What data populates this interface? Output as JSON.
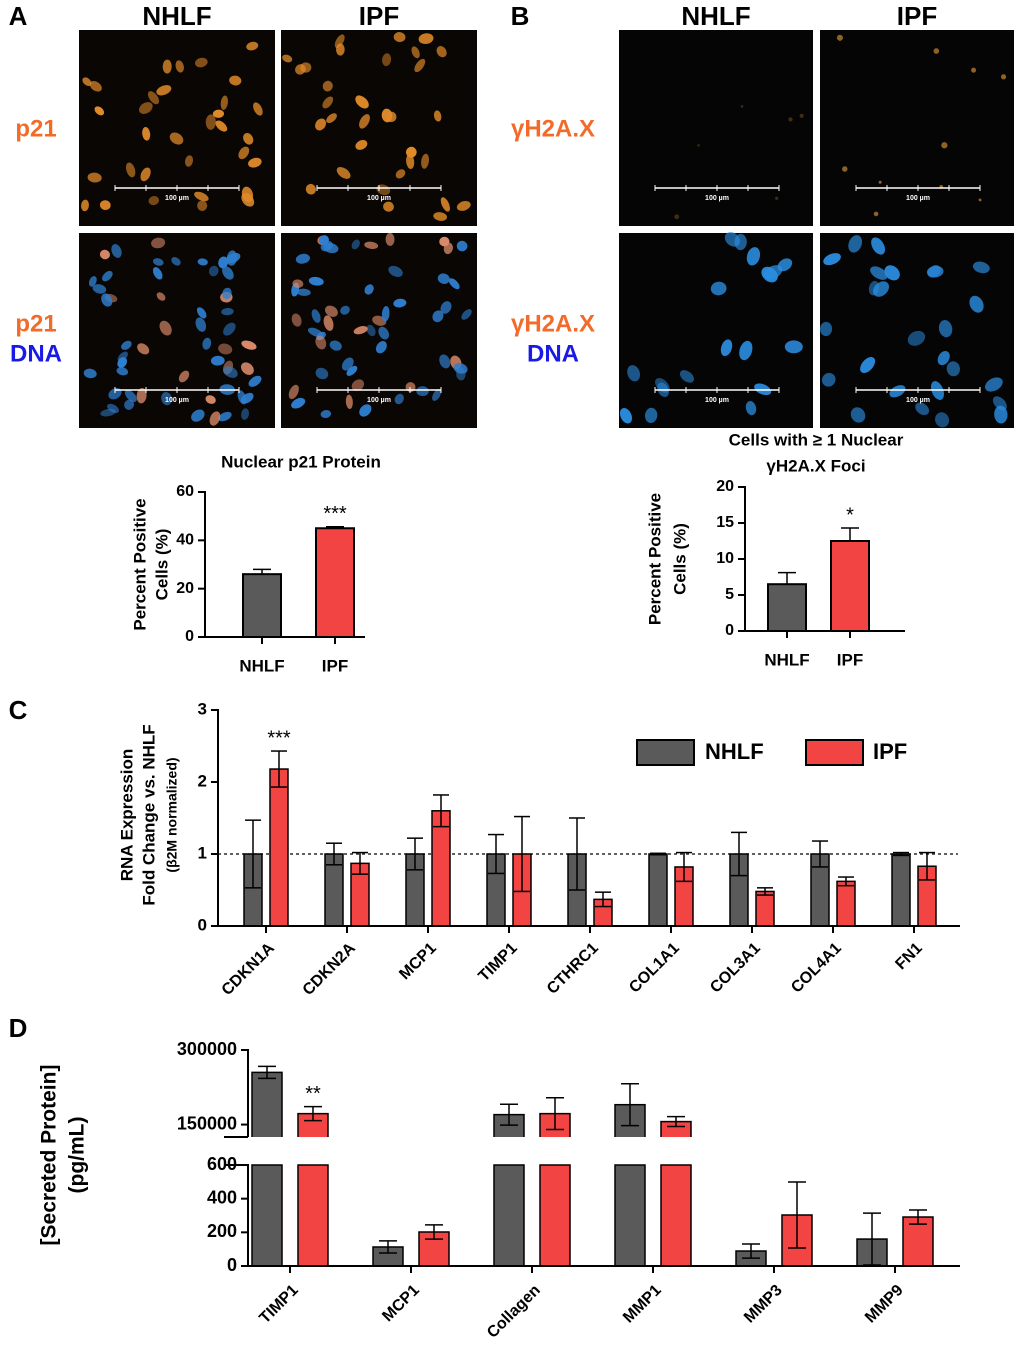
{
  "figure": {
    "panel_labels": [
      "A",
      "B",
      "C",
      "D"
    ],
    "panel_a": {
      "columns": [
        "NHLF",
        "IPF"
      ],
      "rows": [
        [
          "p21"
        ],
        [
          "p21",
          "DNA"
        ]
      ]
    },
    "panel_b": {
      "columns": [
        "NHLF",
        "IPF"
      ],
      "rows": [
        [
          "γH2A.X"
        ],
        [
          "γH2A.X",
          "DNA"
        ]
      ]
    },
    "scale_bar": "100 µm"
  },
  "chart_data": [
    {
      "type": "bar",
      "title": [
        "Nuclear p21 Protein"
      ],
      "ylabel": [
        "Percent Positive",
        "Cells (%)"
      ],
      "categories": [
        "NHLF",
        "IPF"
      ],
      "values": [
        26,
        45
      ],
      "errors": [
        2,
        0.6
      ],
      "colors": [
        "#5a5a5a",
        "#f34444"
      ],
      "ylim": [
        0,
        60
      ],
      "yticks": [
        0,
        20,
        40,
        60
      ],
      "annotations": [
        {
          "text": "***",
          "category": "IPF"
        }
      ]
    },
    {
      "type": "bar",
      "title": [
        "Cells with ≥ 1 Nuclear",
        "γH2A.X Foci"
      ],
      "ylabel": [
        "Percent Positive",
        "Cells (%)"
      ],
      "categories": [
        "NHLF",
        "IPF"
      ],
      "values": [
        6.5,
        12.5
      ],
      "errors": [
        1.6,
        1.8
      ],
      "colors": [
        "#5a5a5a",
        "#f34444"
      ],
      "ylim": [
        0,
        20
      ],
      "yticks": [
        0,
        5,
        10,
        15,
        20
      ],
      "annotations": [
        {
          "text": "*",
          "category": "IPF"
        }
      ]
    },
    {
      "type": "grouped_bar",
      "ylabel": [
        "RNA Expression",
        "Fold Change vs. NHLF",
        "(β2M normalized)"
      ],
      "categories": [
        "CDKN1A",
        "CDKN2A",
        "MCP1",
        "TIMP1",
        "CTHRC1",
        "COL1A1",
        "COL3A1",
        "COL4A1",
        "FN1"
      ],
      "series": [
        {
          "name": "NHLF",
          "color": "#5a5a5a",
          "values": [
            1,
            1,
            1,
            1,
            1,
            1,
            1,
            1,
            1
          ],
          "errors": [
            0.47,
            0.15,
            0.22,
            0.27,
            0.5,
            0.01,
            0.3,
            0.18,
            0.02
          ]
        },
        {
          "name": "IPF",
          "color": "#f34444",
          "values": [
            2.18,
            0.87,
            1.6,
            1.0,
            0.37,
            0.82,
            0.48,
            0.62,
            0.83
          ],
          "errors": [
            0.25,
            0.15,
            0.22,
            0.52,
            0.1,
            0.2,
            0.05,
            0.06,
            0.19
          ]
        }
      ],
      "ylim": [
        0,
        3
      ],
      "yticks": [
        0,
        1,
        2,
        3
      ],
      "reference_line": 1,
      "annotations": [
        {
          "text": "***",
          "category": "CDKN1A",
          "series": "IPF"
        }
      ]
    },
    {
      "type": "broken_bar",
      "ylabel": [
        "[Secreted Protein]",
        "(pg/mL)"
      ],
      "categories": [
        "TIMP1",
        "MCP1",
        "Collagen",
        "MMP1",
        "MMP3",
        "MMP9"
      ],
      "series": [
        {
          "name": "NHLF",
          "color": "#5a5a5a",
          "values": [
            255000,
            113,
            170000,
            190000,
            89,
            160
          ],
          "errors": [
            12000,
            36,
            21000,
            42000,
            42,
            154
          ]
        },
        {
          "name": "IPF",
          "color": "#f34444",
          "values": [
            172000,
            202,
            172000,
            156000,
            303,
            291
          ],
          "errors": [
            14000,
            42,
            32000,
            10000,
            196,
            42
          ]
        }
      ],
      "segments": [
        {
          "ylim": [
            0,
            600
          ],
          "yticks": [
            0,
            200,
            400,
            600
          ]
        },
        {
          "ylim": [
            125000,
            300000
          ],
          "yticks": [
            150000,
            300000
          ]
        }
      ],
      "annotations": [
        {
          "text": "**",
          "category": "TIMP1",
          "series": "IPF"
        }
      ]
    }
  ]
}
